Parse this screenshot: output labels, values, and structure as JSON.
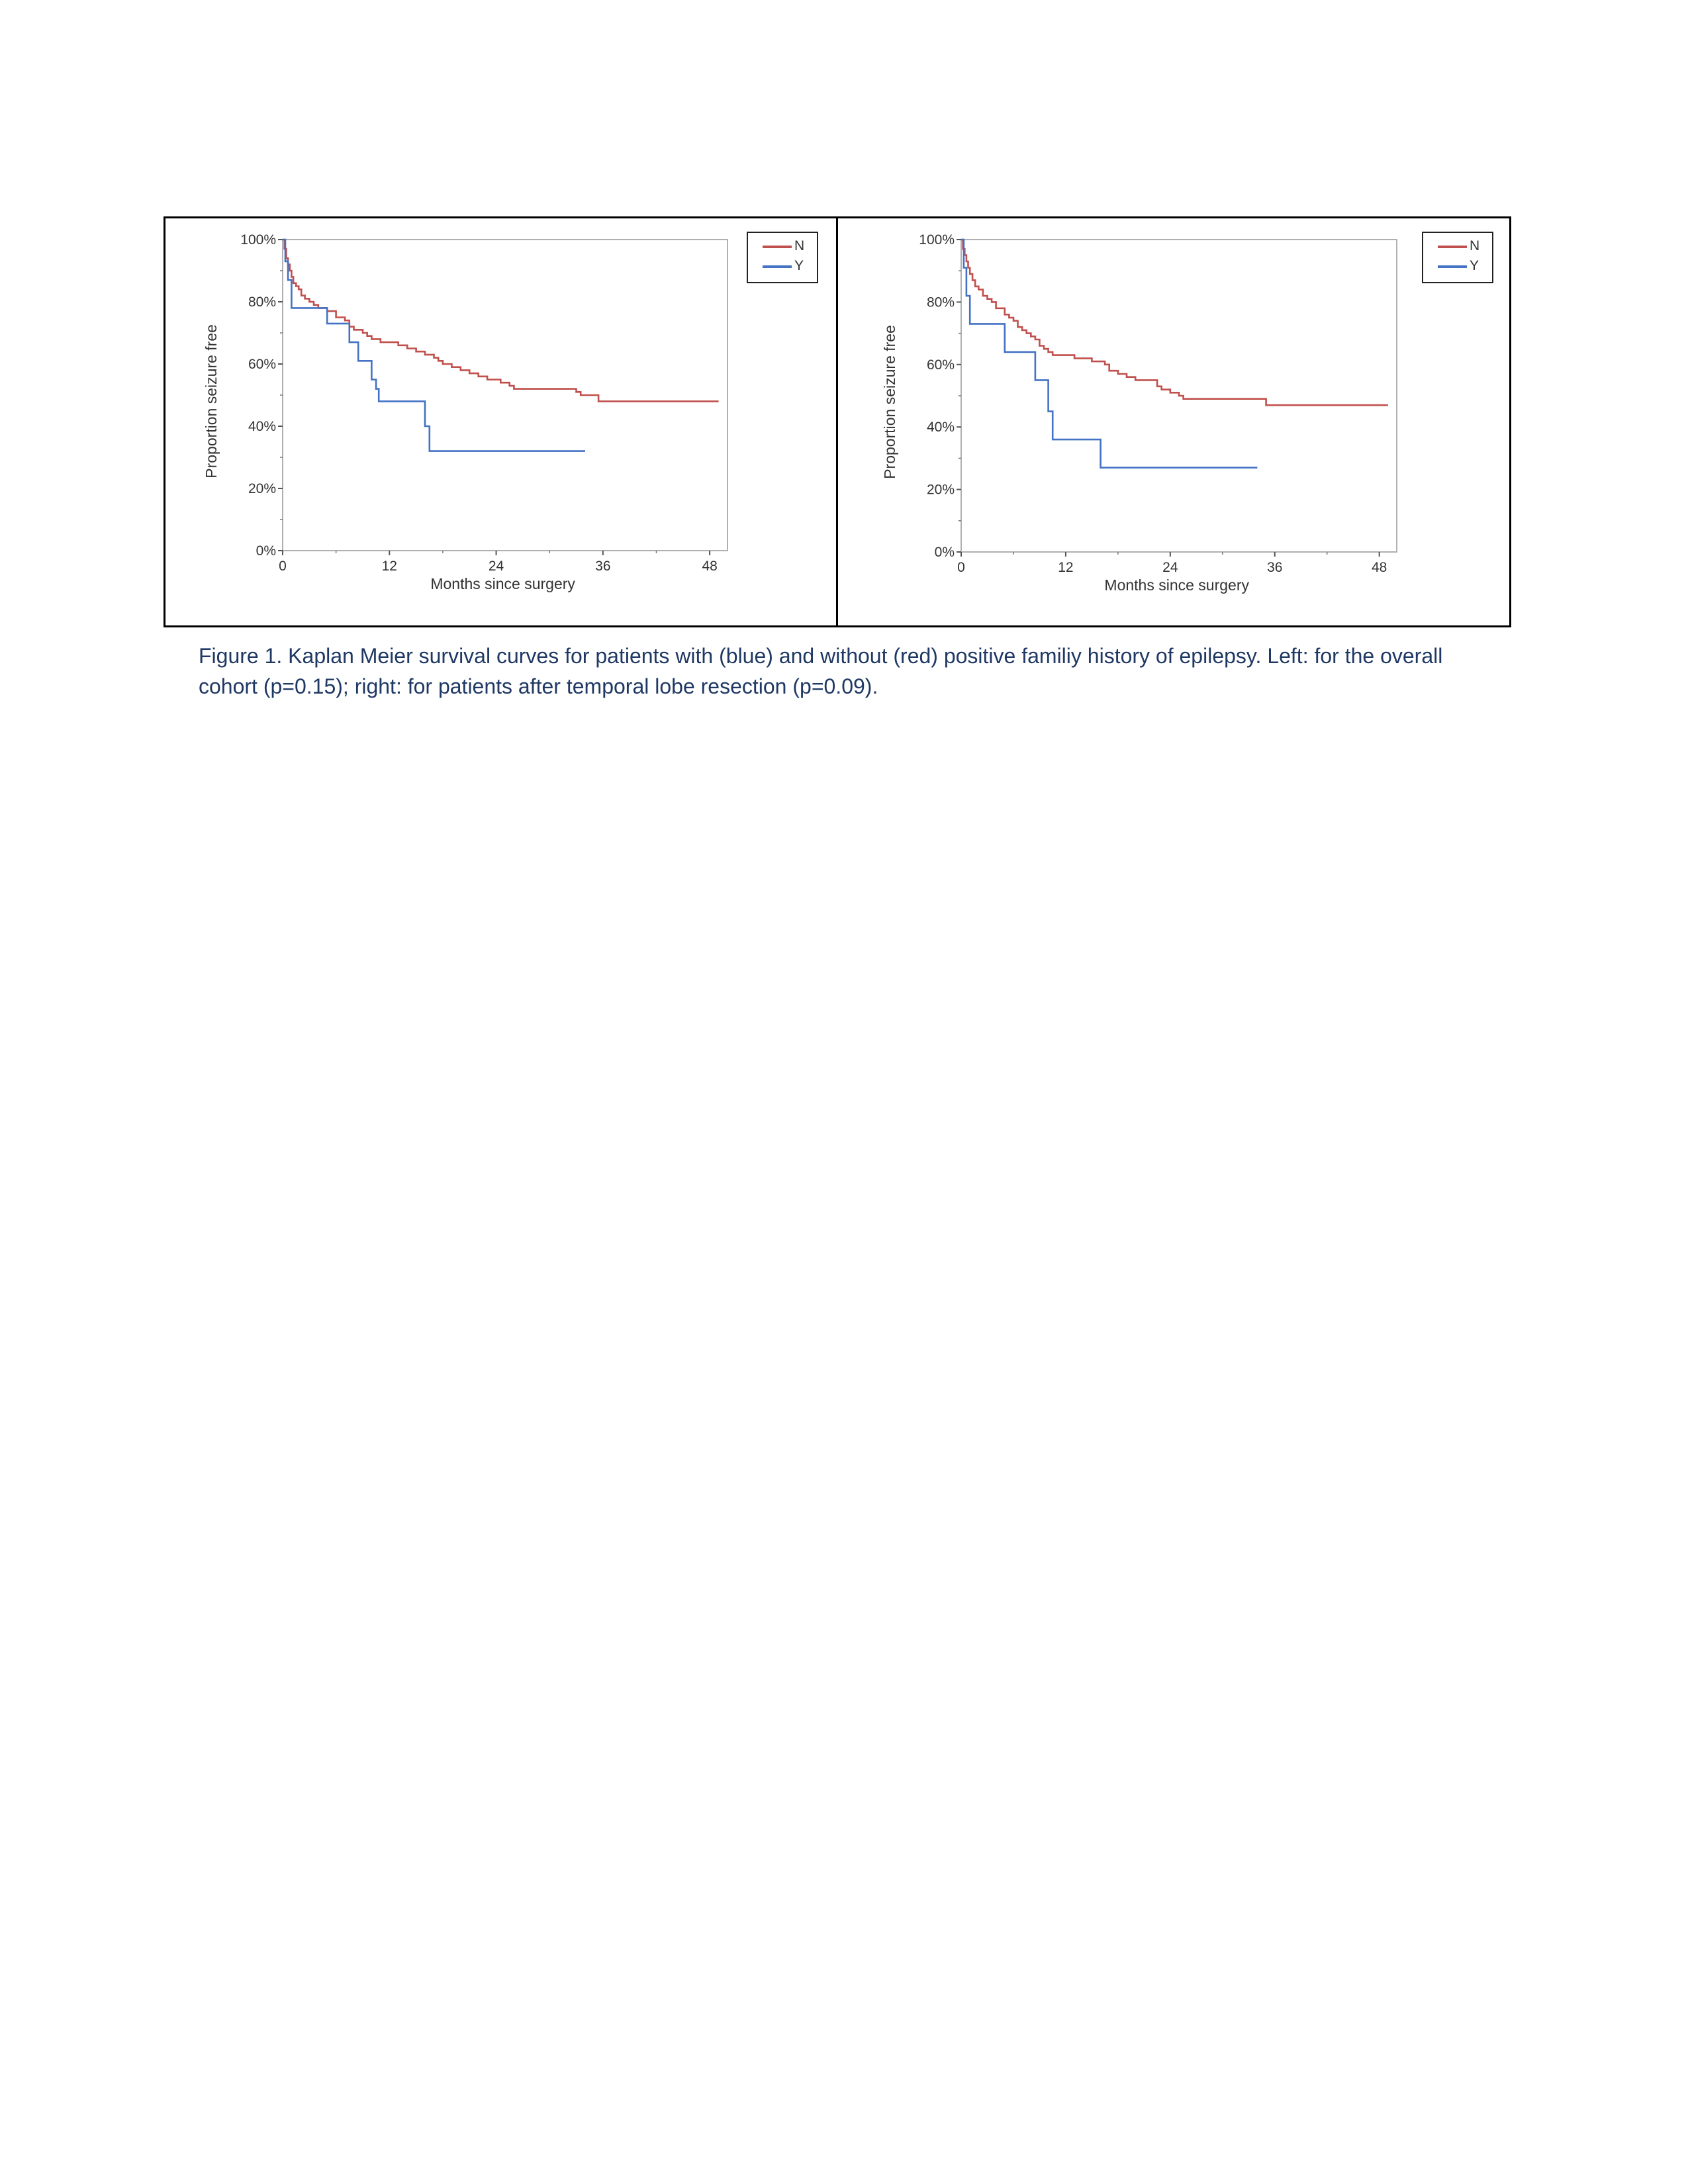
{
  "chart_data": [
    {
      "type": "line",
      "xlabel": "Months since surgery",
      "ylabel": "Proportion seizure free",
      "xlim": [
        0,
        50
      ],
      "ylim": [
        0,
        1
      ],
      "x_ticks": [
        "0",
        "12",
        "24",
        "36",
        "48"
      ],
      "y_ticks": [
        "0%",
        "20%",
        "40%",
        "60%",
        "80%",
        "100%"
      ],
      "legend": [
        "N",
        "Y"
      ],
      "legend_position": "top-right",
      "step": true,
      "series": [
        {
          "name": "N",
          "color": "#c0504d",
          "x": [
            0,
            0.2,
            0.4,
            0.6,
            0.8,
            1.0,
            1.2,
            1.5,
            1.8,
            2.1,
            2.5,
            3.0,
            3.5,
            4.0,
            5.0,
            6.0,
            7.0,
            7.5,
            8.0,
            9.0,
            9.5,
            10.0,
            11.0,
            13.0,
            14.0,
            15.0,
            16.0,
            17.0,
            17.5,
            18.0,
            19.0,
            20.0,
            21.0,
            22.0,
            23.0,
            24.5,
            25.5,
            26.0,
            27.0,
            33.0,
            33.5,
            35.0,
            35.5,
            49.0
          ],
          "y": [
            1.0,
            0.97,
            0.94,
            0.92,
            0.9,
            0.88,
            0.86,
            0.85,
            0.84,
            0.82,
            0.81,
            0.8,
            0.79,
            0.78,
            0.77,
            0.75,
            0.74,
            0.72,
            0.71,
            0.7,
            0.69,
            0.68,
            0.67,
            0.66,
            0.65,
            0.64,
            0.63,
            0.62,
            0.61,
            0.6,
            0.59,
            0.58,
            0.57,
            0.56,
            0.55,
            0.54,
            0.53,
            0.52,
            0.52,
            0.51,
            0.5,
            0.5,
            0.48,
            0.48
          ]
        },
        {
          "name": "Y",
          "color": "#4472c4",
          "x": [
            0,
            0.3,
            0.6,
            1.0,
            5.0,
            7.0,
            7.5,
            8.5,
            10.0,
            10.5,
            10.8,
            16.0,
            16.5,
            34.0
          ],
          "y": [
            1.0,
            0.93,
            0.87,
            0.78,
            0.73,
            0.73,
            0.67,
            0.61,
            0.55,
            0.52,
            0.48,
            0.4,
            0.32,
            0.32
          ]
        }
      ]
    },
    {
      "type": "line",
      "xlabel": "Months since surgery",
      "ylabel": "Proportion seizure free",
      "xlim": [
        0,
        50
      ],
      "ylim": [
        0,
        1
      ],
      "x_ticks": [
        "0",
        "12",
        "24",
        "36",
        "48"
      ],
      "y_ticks": [
        "0%",
        "20%",
        "40%",
        "60%",
        "80%",
        "100%"
      ],
      "legend": [
        "N",
        "Y"
      ],
      "legend_position": "top-right",
      "step": true,
      "series": [
        {
          "name": "N",
          "color": "#c0504d",
          "x": [
            0,
            0.2,
            0.4,
            0.6,
            0.8,
            1.0,
            1.3,
            1.6,
            2.0,
            2.5,
            3.0,
            3.5,
            4.0,
            5.0,
            5.5,
            6.0,
            6.5,
            7.0,
            7.5,
            8.0,
            8.5,
            9.0,
            9.5,
            10.0,
            10.5,
            11.0,
            13.0,
            15.0,
            16.5,
            17.0,
            18.0,
            19.0,
            20.0,
            21.0,
            22.5,
            23.0,
            24.0,
            25.0,
            25.5,
            35.0,
            49.0
          ],
          "y": [
            1.0,
            0.97,
            0.95,
            0.93,
            0.91,
            0.89,
            0.87,
            0.85,
            0.84,
            0.82,
            0.81,
            0.8,
            0.78,
            0.76,
            0.75,
            0.74,
            0.72,
            0.71,
            0.7,
            0.69,
            0.68,
            0.66,
            0.65,
            0.64,
            0.63,
            0.63,
            0.62,
            0.61,
            0.6,
            0.58,
            0.57,
            0.56,
            0.55,
            0.55,
            0.53,
            0.52,
            0.51,
            0.5,
            0.49,
            0.47,
            0.47
          ]
        },
        {
          "name": "Y",
          "color": "#4472c4",
          "x": [
            0,
            0.3,
            0.6,
            1.0,
            5.0,
            8.5,
            10.0,
            10.5,
            16.0,
            34.0
          ],
          "y": [
            1.0,
            0.91,
            0.82,
            0.73,
            0.64,
            0.55,
            0.45,
            0.36,
            0.27,
            0.27
          ]
        }
      ]
    }
  ],
  "caption": "Figure 1. Kaplan Meier survival curves for patients with (blue) and without (red) positive familiy history of epilepsy. Left: for the overall cohort (p=0.15); right: for patients after temporal lobe resection (p=0.09)."
}
